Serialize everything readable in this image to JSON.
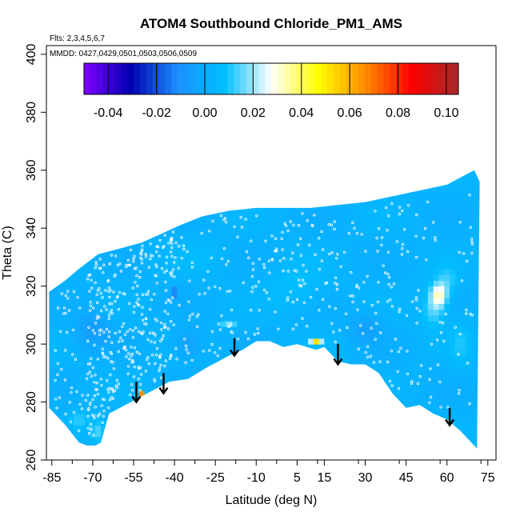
{
  "chart_data": {
    "type": "heatmap",
    "title": "ATOM4 Southbound Chloride_PM1_AMS",
    "subtitle_flights": "Flts: 2,3,4,5,6,7",
    "subtitle_dates": "MMDD: 0427,0429,0501,0503,0506,0509",
    "xlabel": "Latitude (deg N)",
    "ylabel": "Theta (C)",
    "xlim": [
      -87,
      78
    ],
    "ylim": [
      260,
      403
    ],
    "x_ticks": [
      -85,
      -70,
      -55,
      -40,
      -25,
      -10,
      5,
      15,
      30,
      45,
      60,
      75
    ],
    "y_ticks": [
      260,
      280,
      300,
      320,
      340,
      360,
      380,
      400
    ],
    "colorbar": {
      "min": -0.05,
      "max": 0.105,
      "ticks": [
        -0.04,
        -0.02,
        0.0,
        0.02,
        0.04,
        0.06,
        0.08,
        0.1
      ],
      "tick_labels": [
        "-0.04",
        "-0.02",
        "0.00",
        "0.02",
        "0.04",
        "0.06",
        "0.08",
        "0.10"
      ],
      "colors": [
        "#7f00ff",
        "#0000b0",
        "#1e90ff",
        "#00bfff",
        "#ffffff",
        "#ffff00",
        "#ff8c00",
        "#ff0000",
        "#a52a2a"
      ]
    },
    "base_value": 0.003,
    "background_color": "#1eb0ff",
    "upper_boundary": [
      [
        -86,
        318
      ],
      [
        -80,
        322
      ],
      [
        -75,
        326
      ],
      [
        -68,
        331
      ],
      [
        -60,
        333
      ],
      [
        -52,
        335
      ],
      [
        -45,
        338
      ],
      [
        -38,
        341
      ],
      [
        -30,
        344
      ],
      [
        -20,
        346
      ],
      [
        -10,
        347
      ],
      [
        0,
        347
      ],
      [
        10,
        347
      ],
      [
        20,
        348
      ],
      [
        30,
        349
      ],
      [
        40,
        351
      ],
      [
        50,
        353
      ],
      [
        60,
        355
      ],
      [
        66,
        358
      ],
      [
        70,
        360
      ]
    ],
    "lower_boundary": [
      [
        -86,
        278
      ],
      [
        -80,
        272
      ],
      [
        -75,
        266
      ],
      [
        -72,
        265
      ],
      [
        -69,
        265
      ],
      [
        -67,
        266
      ],
      [
        -64,
        276
      ],
      [
        -60,
        278
      ],
      [
        -54,
        281
      ],
      [
        -48,
        284
      ],
      [
        -42,
        287
      ],
      [
        -35,
        288
      ],
      [
        -28,
        292
      ],
      [
        -20,
        296
      ],
      [
        -15,
        298
      ],
      [
        -10,
        301
      ],
      [
        -5,
        301
      ],
      [
        0,
        299
      ],
      [
        5,
        300
      ],
      [
        12,
        298
      ],
      [
        15,
        299
      ],
      [
        20,
        294
      ],
      [
        25,
        293
      ],
      [
        30,
        293
      ],
      [
        35,
        290
      ],
      [
        40,
        283
      ],
      [
        45,
        278
      ],
      [
        50,
        279
      ],
      [
        55,
        276
      ],
      [
        60,
        274
      ],
      [
        65,
        270
      ],
      [
        71,
        264
      ]
    ],
    "features": [
      {
        "lat": 57,
        "theta": 317,
        "value": 0.03,
        "rx": 3,
        "ry": 4
      },
      {
        "lat": 55,
        "theta": 312,
        "value": 0.015,
        "rx": 4,
        "ry": 6
      },
      {
        "lat": 60,
        "theta": 322,
        "value": 0.012,
        "rx": 4,
        "ry": 5
      },
      {
        "lat": 12,
        "theta": 301,
        "value": 0.05,
        "rx": 2,
        "ry": 1
      },
      {
        "lat": -20,
        "theta": 307,
        "value": 0.018,
        "rx": 3,
        "ry": 1
      },
      {
        "lat": -52,
        "theta": 283,
        "value": 0.065,
        "rx": 1,
        "ry": 1
      },
      {
        "lat": -68,
        "theta": 270,
        "value": 0.015,
        "rx": 3,
        "ry": 4
      },
      {
        "lat": -75,
        "theta": 274,
        "value": 0.012,
        "rx": 3,
        "ry": 3
      },
      {
        "lat": -40,
        "theta": 318,
        "value": -0.035,
        "rx": 1,
        "ry": 1
      },
      {
        "lat": -70,
        "theta": 305,
        "value": -0.006,
        "rx": 6,
        "ry": 6
      },
      {
        "lat": -35,
        "theta": 300,
        "value": -0.005,
        "rx": 5,
        "ry": 5
      },
      {
        "lat": 5,
        "theta": 320,
        "value": 0.008,
        "rx": 10,
        "ry": 8
      },
      {
        "lat": 30,
        "theta": 306,
        "value": -0.004,
        "rx": 6,
        "ry": 5
      },
      {
        "lat": 65,
        "theta": 300,
        "value": 0.009,
        "rx": 4,
        "ry": 8
      },
      {
        "lat": -30,
        "theta": 330,
        "value": 0.006,
        "rx": 8,
        "ry": 6
      }
    ],
    "arrows": [
      {
        "lat": -54,
        "theta_top": 287,
        "theta_bottom": 280
      },
      {
        "lat": -44,
        "theta_top": 290,
        "theta_bottom": 283
      },
      {
        "lat": -18,
        "theta_top": 302,
        "theta_bottom": 296
      },
      {
        "lat": 20,
        "theta_top": 300,
        "theta_bottom": 293
      },
      {
        "lat": 61,
        "theta_top": 278,
        "theta_bottom": 272
      }
    ]
  }
}
